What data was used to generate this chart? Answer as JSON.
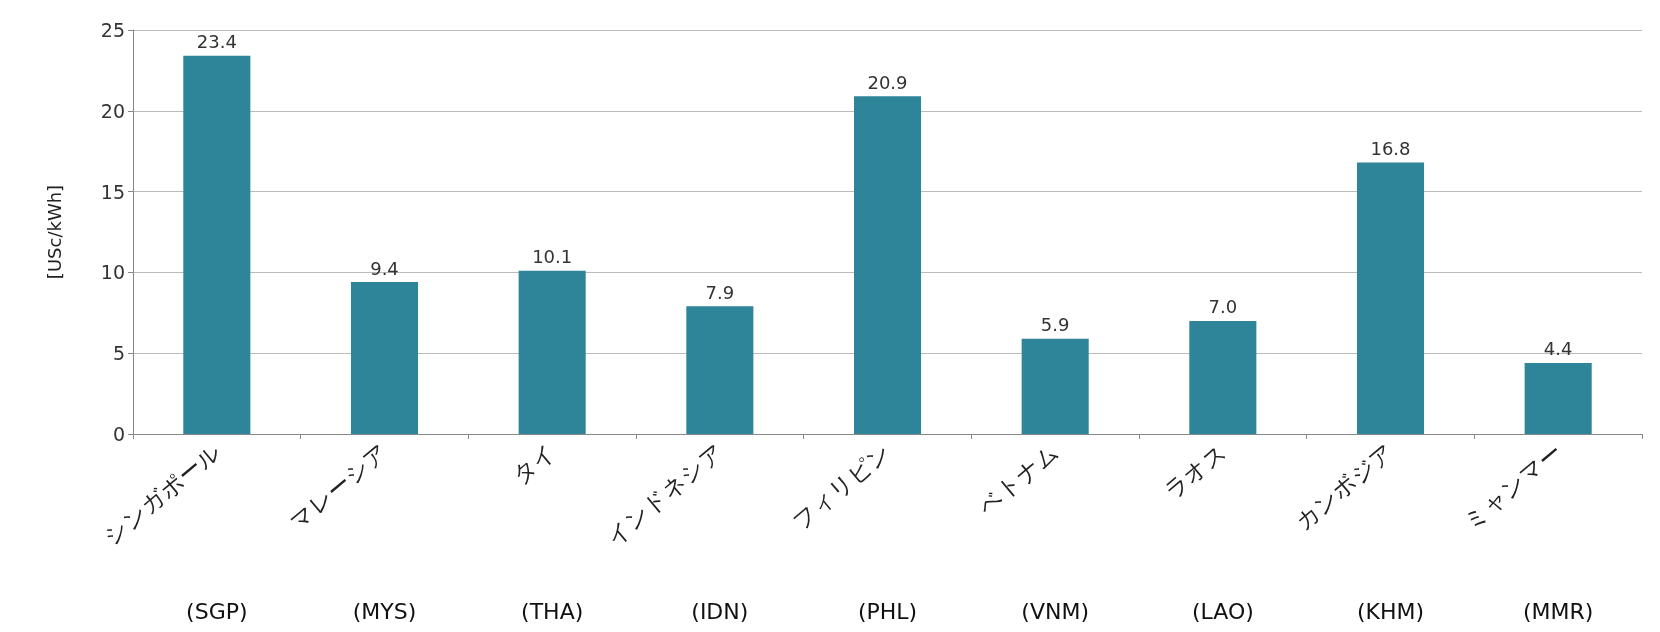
{
  "chart_data": {
    "type": "bar",
    "ylabel": "[USc/kWh]",
    "categories": [
      "シンガポール\n(SGP)",
      "マレーシア\n(MYS)",
      "タイ\n(THA)",
      "インドネシア\n(IDN)",
      "フィリピン\n(PHL)",
      "ベトナム\n(VNM)",
      "ラオス\n(LAO)",
      "カンボジア\n(KHM)",
      "ミャンマー\n(MMR)"
    ],
    "values": [
      23.4,
      9.4,
      10.1,
      7.9,
      20.9,
      5.9,
      7.0,
      16.8,
      4.4
    ],
    "value_labels": [
      "23.4",
      "9.4",
      "10.1",
      "7.9",
      "20.9",
      "5.9",
      "7.0",
      "16.8",
      "4.4"
    ],
    "color": "#2e8499",
    "ylim": [
      0,
      25
    ],
    "yticks": [
      0,
      5,
      10,
      15,
      20,
      25
    ],
    "grid": "y"
  }
}
